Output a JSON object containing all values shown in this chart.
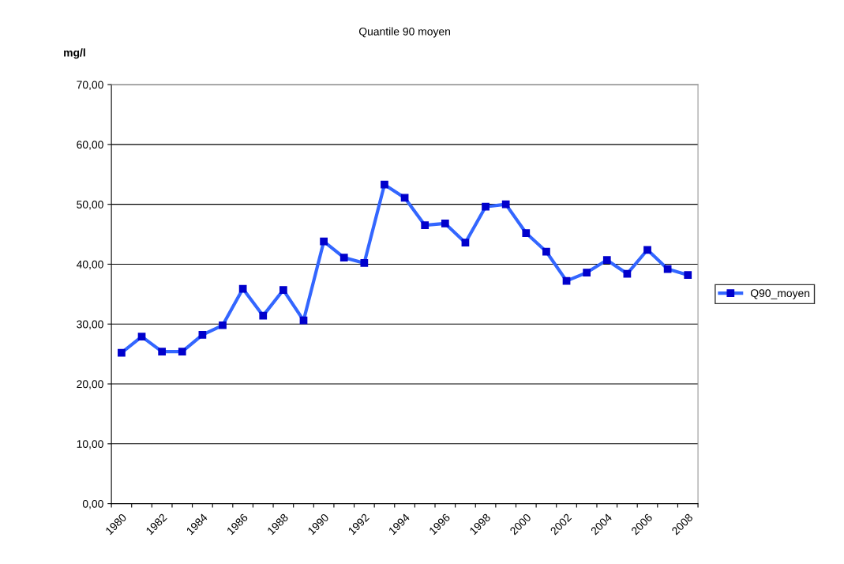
{
  "chart_data": {
    "type": "line",
    "title": "Quantile 90 moyen",
    "ylabel": "mg/l",
    "categories": [
      "1980",
      null,
      "1982",
      null,
      "1984",
      null,
      "1986",
      null,
      "1988",
      null,
      "1990",
      null,
      "1992",
      null,
      "1994",
      null,
      "1996",
      null,
      "1998",
      null,
      "2000",
      null,
      "2002",
      null,
      "2004",
      null,
      "2006",
      null,
      "2008"
    ],
    "series": [
      {
        "name": "Q90_moyen",
        "color": "#3366ff",
        "values": [
          25.2,
          27.9,
          25.4,
          25.4,
          28.2,
          29.8,
          35.9,
          31.4,
          35.7,
          30.6,
          43.8,
          41.1,
          40.2,
          53.3,
          51.1,
          46.5,
          46.8,
          43.6,
          49.6,
          50.0,
          45.2,
          42.1,
          37.2,
          38.6,
          40.7,
          38.4,
          42.4,
          39.2,
          38.2
        ]
      }
    ],
    "ylim": [
      0,
      70
    ],
    "yticks": [
      {
        "value": 0,
        "label": "0,00"
      },
      {
        "value": 10,
        "label": "10,00"
      },
      {
        "value": 20,
        "label": "20,00"
      },
      {
        "value": 30,
        "label": "30,00"
      },
      {
        "value": 40,
        "label": "40,00"
      },
      {
        "value": 50,
        "label": "50,00"
      },
      {
        "value": 60,
        "label": "60,00"
      },
      {
        "value": 70,
        "label": "70,00"
      }
    ],
    "grid": "y",
    "legend": "right",
    "marker": "square",
    "line_style": "solid"
  }
}
